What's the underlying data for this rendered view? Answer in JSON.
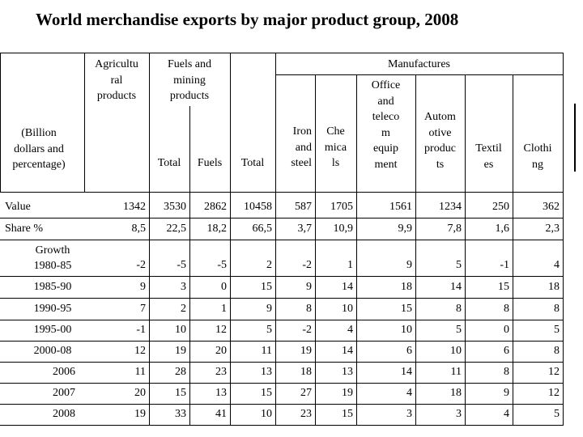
{
  "title": "World merchandise exports by major product group, 2008",
  "headers": {
    "agricultural": [
      "Agricultu",
      "ral",
      "products"
    ],
    "fuels_mining": [
      "Fuels and",
      "mining",
      "products"
    ],
    "manufactures": "Manufactures",
    "unit": [
      "(Billion",
      "dollars and",
      "percentage)"
    ],
    "fm_total": "Total",
    "fm_fuels": "Fuels",
    "m_total": "Total",
    "iron_steel": [
      "Iron",
      "and",
      "steel"
    ],
    "chemicals": [
      "Che",
      "mica",
      "ls"
    ],
    "office_telecom": [
      "Office",
      "and",
      "teleco",
      "m",
      "equip",
      "ment"
    ],
    "automotive": [
      "Autom",
      "otive",
      "produc",
      "ts"
    ],
    "textiles": [
      "Textil",
      "es"
    ],
    "clothing": [
      "Clothi",
      "ng"
    ]
  },
  "rows": [
    {
      "label": "Value",
      "align": "left",
      "values": [
        "1342",
        "3530",
        "2862",
        "10458",
        "587",
        "1705",
        "1561",
        "1234",
        "250",
        "362"
      ]
    },
    {
      "label": "Share %",
      "align": "left",
      "values": [
        "8,5",
        "22,5",
        "18,2",
        "66,5",
        "3,7",
        "10,9",
        "9,9",
        "7,8",
        "1,6",
        "2,3"
      ]
    },
    {
      "label": "Growth",
      "label2": "1980-85",
      "align": "center",
      "values": [
        "-2",
        "-5",
        "-5",
        "2",
        "-2",
        "1",
        "9",
        "5",
        "-1",
        "4"
      ]
    },
    {
      "label": "1985-90",
      "align": "center",
      "values": [
        "9",
        "3",
        "0",
        "15",
        "9",
        "14",
        "18",
        "14",
        "15",
        "18"
      ]
    },
    {
      "label": "1990-95",
      "align": "center",
      "values": [
        "7",
        "2",
        "1",
        "9",
        "8",
        "10",
        "15",
        "8",
        "8",
        "8"
      ]
    },
    {
      "label": "1995-00",
      "align": "center",
      "values": [
        "-1",
        "10",
        "12",
        "5",
        "-2",
        "4",
        "10",
        "5",
        "0",
        "5"
      ]
    },
    {
      "label": "2000-08",
      "align": "center",
      "values": [
        "12",
        "19",
        "20",
        "11",
        "19",
        "14",
        "6",
        "10",
        "6",
        "8"
      ]
    },
    {
      "label": "2006",
      "align": "right",
      "values": [
        "11",
        "28",
        "23",
        "13",
        "18",
        "13",
        "14",
        "11",
        "8",
        "12"
      ]
    },
    {
      "label": "2007",
      "align": "right",
      "values": [
        "20",
        "15",
        "13",
        "15",
        "27",
        "19",
        "4",
        "18",
        "9",
        "12"
      ]
    },
    {
      "label": "2008",
      "align": "right",
      "values": [
        "19",
        "33",
        "41",
        "10",
        "23",
        "15",
        "3",
        "3",
        "4",
        "5"
      ]
    }
  ]
}
